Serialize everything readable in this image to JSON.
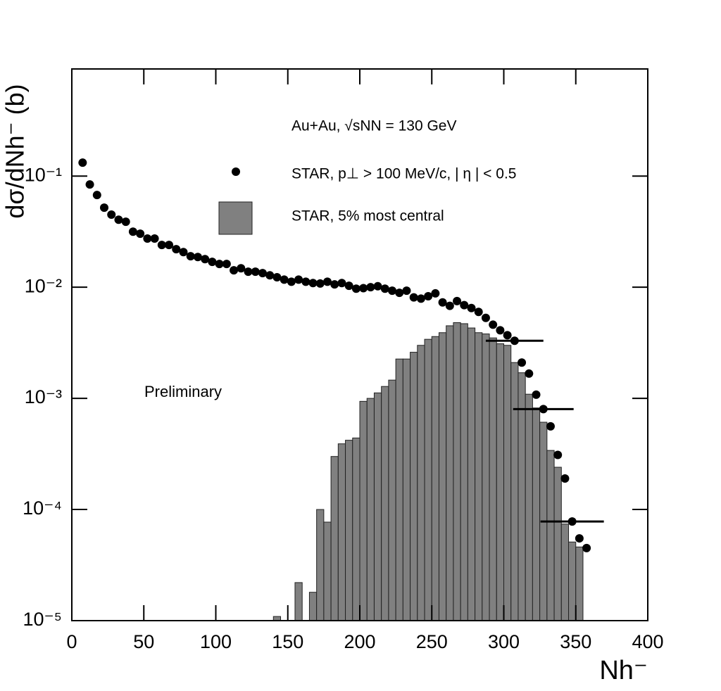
{
  "chart_data": {
    "type": "scatter",
    "ylog": true,
    "xlabel": "Nh⁻",
    "ylabel": "dσ/dNh⁻  (b)",
    "annotation": "Au+Au, √sNN = 130 GeV",
    "note": "Preliminary",
    "xlim": [
      0,
      400
    ],
    "xticks": [
      0,
      50,
      100,
      150,
      200,
      250,
      300,
      350,
      400
    ],
    "ylim": [
      1e-05,
      0.92
    ],
    "yticks": [
      {
        "value": 1e-05,
        "label": "10⁻⁵"
      },
      {
        "value": 0.0001,
        "label": "10⁻⁴"
      },
      {
        "value": 0.001,
        "label": "10⁻³"
      },
      {
        "value": 0.01,
        "label": "10⁻²"
      },
      {
        "value": 0.1,
        "label": "10⁻¹"
      }
    ],
    "series": [
      {
        "name": "STAR, p⊥ > 100 MeV/c, | η | < 0.5",
        "color": "#000000",
        "x": [
          7.5,
          12.5,
          17.5,
          22.5,
          27.5,
          32.5,
          37.5,
          42.5,
          47.5,
          52.5,
          57.5,
          62.5,
          67.5,
          72.5,
          77.5,
          82.5,
          87.5,
          92.5,
          97.5,
          102.5,
          107.5,
          112.5,
          117.5,
          122.5,
          127.5,
          132.5,
          137.5,
          142.5,
          147.5,
          152.5,
          157.5,
          162.5,
          167.5,
          172.5,
          177.5,
          182.5,
          187.5,
          192.5,
          197.5,
          202.5,
          207.5,
          212.5,
          217.5,
          222.5,
          227.5,
          232.5,
          237.5,
          242.5,
          247.5,
          252.5,
          257.5,
          262.5,
          267.5,
          272.5,
          277.5,
          282.5,
          287.5,
          292.5,
          297.5,
          302.5,
          307.5,
          312.5,
          317.5,
          322.5,
          327.5,
          332.5,
          337.5,
          342.5,
          347.5,
          352.5,
          357.5
        ],
        "values": [
          0.132,
          0.084,
          0.0675,
          0.052,
          0.045,
          0.0405,
          0.0388,
          0.0316,
          0.0303,
          0.0274,
          0.0274,
          0.024,
          0.024,
          0.022,
          0.0207,
          0.019,
          0.0187,
          0.0179,
          0.0169,
          0.0162,
          0.0162,
          0.0142,
          0.0148,
          0.0138,
          0.0138,
          0.0134,
          0.0128,
          0.0123,
          0.0117,
          0.0112,
          0.0117,
          0.0112,
          0.0109,
          0.0108,
          0.0112,
          0.0106,
          0.0109,
          0.0103,
          0.0097,
          0.0098,
          0.01,
          0.0102,
          0.0097,
          0.0093,
          0.0089,
          0.0093,
          0.0081,
          0.0079,
          0.0083,
          0.0088,
          0.0073,
          0.0068,
          0.0075,
          0.0069,
          0.0065,
          0.006,
          0.0053,
          0.0046,
          0.0041,
          0.0037,
          0.0033,
          0.0021,
          0.00167,
          0.00108,
          0.0008,
          0.00056,
          0.00031,
          0.00019,
          7.8e-05,
          5.5e-05,
          4.5e-05
        ],
        "xerr": [
          null,
          null,
          null,
          null,
          null,
          null,
          null,
          null,
          null,
          null,
          null,
          null,
          null,
          null,
          null,
          null,
          null,
          null,
          null,
          null,
          null,
          null,
          null,
          null,
          null,
          null,
          null,
          null,
          null,
          null,
          null,
          null,
          null,
          null,
          null,
          null,
          null,
          null,
          null,
          null,
          null,
          null,
          null,
          null,
          null,
          null,
          null,
          null,
          null,
          null,
          null,
          null,
          null,
          null,
          null,
          null,
          null,
          null,
          null,
          null,
          20,
          null,
          null,
          null,
          21,
          null,
          null,
          null,
          22,
          null,
          null
        ]
      }
    ],
    "histogram": {
      "name": "STAR, 5% most central",
      "color": "#808080",
      "bins": [
        140,
        145,
        150,
        155,
        160,
        165,
        170,
        175,
        180,
        185,
        190,
        195,
        200,
        205,
        210,
        215,
        220,
        225,
        230,
        235,
        240,
        245,
        250,
        255,
        260,
        265,
        270,
        275,
        280,
        285,
        290,
        295,
        300,
        305,
        310,
        315,
        320,
        325,
        330,
        335,
        340,
        345,
        350,
        355
      ],
      "counts": [
        1.09e-05,
        null,
        null,
        2.2e-05,
        null,
        1.8e-05,
        0.0001,
        7.7e-05,
        0.0003,
        0.00039,
        0.00042,
        0.00044,
        0.00094,
        0.001,
        0.00112,
        0.00128,
        0.00146,
        0.00226,
        0.00226,
        0.0026,
        0.003,
        0.0034,
        0.0036,
        0.0039,
        0.0045,
        0.0048,
        0.0047,
        0.0043,
        0.0039,
        0.0038,
        0.0035,
        0.0031,
        0.003,
        0.0021,
        0.0017,
        0.00109,
        0.00082,
        0.00061,
        0.00034,
        0.00024,
        7.4e-05,
        5.1e-05,
        4.6e-05
      ]
    }
  }
}
